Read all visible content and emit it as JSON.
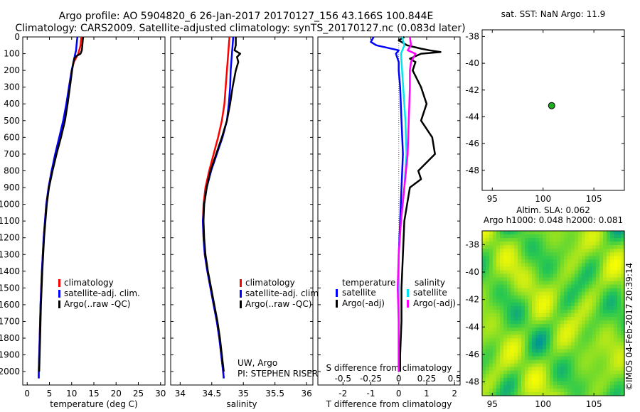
{
  "header": {
    "line1": "Argo profile: AO 5904820_6 26-Jan-2017 20170127_156 43.166S 100.844E",
    "line2": "Climatology: CARS2009. Satellite-adjusted climatology: synTS_20170127.nc (0.083d later)"
  },
  "colors": {
    "climatology": "#ff0000",
    "satellite": "#0000ff",
    "argo": "#000000",
    "salinity_satellite": "#00e5ee",
    "salinity_argo": "#ff00ff",
    "marker": "#22aa22"
  },
  "credits": {
    "uw": "UW, Argo",
    "pi": "PI: STEPHEN RISER",
    "imos": "©IMOS 04-Feb-2017 20:39:14"
  },
  "chart_data": [
    {
      "id": "temperature",
      "type": "line",
      "xlabel": "temperature (deg C)",
      "ylabel": "",
      "xlim": [
        -1,
        31
      ],
      "ylim": [
        2080,
        0
      ],
      "xticks": [
        0,
        5,
        10,
        15,
        20,
        25,
        30
      ],
      "yticks": [
        0,
        100,
        200,
        300,
        400,
        500,
        600,
        700,
        800,
        900,
        1000,
        1100,
        1200,
        1300,
        1400,
        1500,
        1600,
        1700,
        1800,
        1900,
        2000
      ],
      "legend": [
        "climatology",
        "satellite-adj. clim.",
        "Argo(..raw -QC)"
      ],
      "series": [
        {
          "name": "climatology",
          "color": "#ff0000",
          "depth": [
            0,
            20,
            50,
            80,
            100,
            150,
            200,
            300,
            400,
            500,
            600,
            700,
            800,
            900,
            1000,
            1200,
            1400,
            1600,
            1800,
            2000,
            2040
          ],
          "values": [
            12.2,
            12.1,
            12.0,
            11.7,
            11.5,
            10.5,
            10.0,
            9.4,
            8.9,
            8.3,
            7.5,
            6.5,
            5.5,
            4.8,
            4.3,
            3.7,
            3.3,
            3.0,
            2.8,
            2.6,
            2.6
          ]
        },
        {
          "name": "satellite-adj. clim.",
          "color": "#0000ff",
          "depth": [
            0,
            20,
            50,
            80,
            100,
            150,
            200,
            300,
            400,
            500,
            600,
            700,
            800,
            900,
            1000,
            1200,
            1400,
            1600,
            1800,
            2000,
            2040
          ],
          "values": [
            11.3,
            11.2,
            11.1,
            11.0,
            10.8,
            10.4,
            10.0,
            9.4,
            8.8,
            8.1,
            7.2,
            6.3,
            5.5,
            4.8,
            4.3,
            3.7,
            3.3,
            3.0,
            2.8,
            2.6,
            2.6
          ]
        },
        {
          "name": "Argo(..raw -QC)",
          "color": "#000000",
          "depth": [
            0,
            20,
            50,
            80,
            100,
            115,
            130,
            150,
            200,
            300,
            400,
            500,
            600,
            700,
            800,
            900,
            1000,
            1200,
            1400,
            1600,
            1800,
            2000
          ],
          "values": [
            12.6,
            12.5,
            12.4,
            12.3,
            12.0,
            11.0,
            10.6,
            10.4,
            10.1,
            9.6,
            9.1,
            8.5,
            7.6,
            6.6,
            5.7,
            4.9,
            4.4,
            3.8,
            3.4,
            3.1,
            2.9,
            2.7
          ]
        }
      ]
    },
    {
      "id": "salinity",
      "type": "line",
      "xlabel": "salinity",
      "ylabel": "",
      "xlim": [
        33.85,
        36.1
      ],
      "ylim": [
        2080,
        0
      ],
      "xticks": [
        34,
        34.5,
        35,
        35.5,
        36
      ],
      "xtick_labels": [
        "34",
        "34.5",
        "35",
        "35.5",
        "36"
      ],
      "legend": [
        "climatology",
        "satellite-adj. clim.",
        "Argo(..raw -QC)"
      ],
      "series": [
        {
          "name": "climatology",
          "color": "#ff0000",
          "depth": [
            0,
            50,
            100,
            150,
            200,
            300,
            400,
            500,
            600,
            700,
            800,
            900,
            1000,
            1100,
            1200,
            1300,
            1400,
            1500,
            1600,
            1700,
            1800,
            1900,
            2000,
            2040
          ],
          "values": [
            34.78,
            34.77,
            34.76,
            34.75,
            34.74,
            34.72,
            34.7,
            34.66,
            34.6,
            34.53,
            34.46,
            34.4,
            34.37,
            34.36,
            34.37,
            34.39,
            34.43,
            34.48,
            34.53,
            34.58,
            34.62,
            34.65,
            34.68,
            34.69
          ]
        },
        {
          "name": "satellite-adj. clim.",
          "color": "#0000ff",
          "depth": [
            0,
            50,
            100,
            150,
            200,
            300,
            400,
            500,
            600,
            700,
            800,
            900,
            1000,
            1100,
            1200,
            1300,
            1400,
            1500,
            1600,
            1700,
            1800,
            1900,
            2000,
            2040
          ],
          "values": [
            34.84,
            34.83,
            34.82,
            34.81,
            34.8,
            34.79,
            34.77,
            34.74,
            34.67,
            34.58,
            34.49,
            34.42,
            34.38,
            34.36,
            34.37,
            34.39,
            34.43,
            34.48,
            34.53,
            34.58,
            34.62,
            34.65,
            34.68,
            34.69
          ]
        },
        {
          "name": "Argo(..raw -QC)",
          "color": "#000000",
          "depth": [
            0,
            50,
            80,
            100,
            120,
            150,
            200,
            300,
            400,
            500,
            600,
            700,
            800,
            900,
            1000,
            1100,
            1200,
            1300,
            1400,
            1500,
            1600,
            1700,
            1800,
            1900,
            2000
          ],
          "values": [
            34.88,
            34.88,
            34.86,
            34.95,
            34.9,
            34.92,
            34.88,
            34.83,
            34.79,
            34.74,
            34.66,
            34.57,
            34.48,
            34.42,
            34.38,
            34.37,
            34.38,
            34.4,
            34.44,
            34.49,
            34.54,
            34.59,
            34.63,
            34.66,
            34.69
          ]
        }
      ]
    },
    {
      "id": "difference",
      "type": "line",
      "xlabel": "T difference from climatology",
      "secondary_xlabel": "S difference from climatology",
      "xlim": [
        -2.9,
        2.2
      ],
      "ylim": [
        2080,
        0
      ],
      "xticks": [
        -2,
        -1,
        0,
        1,
        2
      ],
      "xtick_labels": [
        "-2",
        "-1",
        "0",
        "1",
        "2"
      ],
      "secondary_xticks": [
        -0.5,
        -0.25,
        0,
        0.25,
        0.5
      ],
      "secondary_xtick_labels": [
        "-0.5",
        "-0.25",
        "0",
        "0.25",
        "0.5"
      ],
      "legend_headers": [
        "temperature",
        "salinity"
      ],
      "legend": [
        "satellite",
        "Argo(-adj)",
        "satellite",
        "Argo(-adj)"
      ],
      "series": [
        {
          "name": "satellite",
          "group": "temperature",
          "color": "#0000ff",
          "depth": [
            0,
            30,
            50,
            80,
            100,
            150,
            200,
            300,
            500,
            700,
            900,
            1100,
            1300,
            1500,
            1700,
            1900,
            2000
          ],
          "values": [
            -0.9,
            -1.0,
            -0.8,
            0.0,
            -0.1,
            0.0,
            0.0,
            0.05,
            0.1,
            0.15,
            0.1,
            0.05,
            0.0,
            0.0,
            0.0,
            0.0,
            0.0
          ]
        },
        {
          "name": "Argo(-adj)",
          "group": "temperature",
          "color": "#000000",
          "depth": [
            0,
            20,
            50,
            70,
            80,
            90,
            100,
            130,
            150,
            200,
            300,
            400,
            500,
            600,
            700,
            800,
            850,
            900,
            1000,
            1100,
            1300,
            1500,
            1700,
            1900,
            2000
          ],
          "values": [
            0.2,
            0.0,
            0.3,
            0.8,
            1.1,
            1.5,
            0.8,
            0.4,
            0.6,
            0.5,
            0.8,
            1.0,
            0.8,
            1.2,
            1.3,
            0.7,
            0.8,
            0.4,
            0.3,
            0.2,
            0.15,
            0.1,
            0.1,
            0.05,
            0.05
          ]
        },
        {
          "name": "satellite",
          "group": "salinity",
          "color": "#00e5ee",
          "depth": [
            0,
            50,
            100,
            200,
            300,
            500,
            700,
            900,
            1100,
            1300,
            1500,
            1700,
            1900,
            2000
          ],
          "values": [
            0.03,
            0.05,
            0.02,
            0.03,
            0.04,
            0.06,
            0.07,
            0.05,
            0.02,
            0.0,
            0.0,
            0.0,
            0.0,
            0.0
          ]
        },
        {
          "name": "Argo(-adj)",
          "group": "salinity",
          "color": "#ff00ff",
          "depth": [
            0,
            50,
            80,
            100,
            150,
            200,
            300,
            500,
            700,
            900,
            1100,
            1300,
            1500,
            1700,
            1900,
            2000
          ],
          "values": [
            0.1,
            0.11,
            0.08,
            0.15,
            0.11,
            0.1,
            0.1,
            0.09,
            0.08,
            0.05,
            0.02,
            0.0,
            -0.01,
            0.0,
            0.0,
            0.0
          ]
        }
      ]
    },
    {
      "id": "location",
      "type": "scatter",
      "title": "sat. SST: NaN Argo: 11.9",
      "xlim": [
        94,
        108
      ],
      "ylim": [
        -49.5,
        -37.5
      ],
      "xticks": [
        95,
        100,
        105
      ],
      "yticks": [
        -38,
        -40,
        -42,
        -44,
        -46,
        -48
      ],
      "points": [
        {
          "x": 100.844,
          "y": -43.166
        }
      ]
    },
    {
      "id": "sla",
      "type": "heatmap",
      "title_line1": "Altim. SLA: 0.062",
      "title_line2": "Argo h1000: 0.048 h2000: 0.081",
      "xlim": [
        94,
        108
      ],
      "ylim": [
        -49,
        -37
      ],
      "xticks": [
        95,
        100,
        105
      ],
      "yticks": [
        -38,
        -40,
        -42,
        -44,
        -46,
        -48
      ]
    }
  ]
}
